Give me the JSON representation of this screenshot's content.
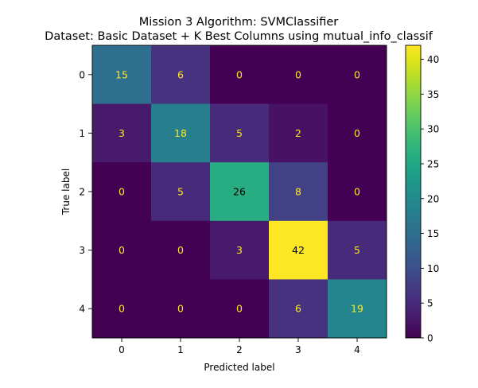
{
  "chart_data": {
    "type": "heatmap",
    "title": "Mission 3 Algorithm: SVMClassifier",
    "subtitle": "Dataset: Basic Dataset + K Best Columns using mutual_info_classif",
    "xlabel": "Predicted label",
    "ylabel": "True label",
    "x_categories": [
      "0",
      "1",
      "2",
      "3",
      "4"
    ],
    "y_categories": [
      "0",
      "1",
      "2",
      "3",
      "4"
    ],
    "values": [
      [
        15,
        6,
        0,
        0,
        0
      ],
      [
        3,
        18,
        5,
        2,
        0
      ],
      [
        0,
        5,
        26,
        8,
        0
      ],
      [
        0,
        0,
        3,
        42,
        5
      ],
      [
        0,
        0,
        0,
        6,
        19
      ]
    ],
    "colorbar": {
      "min": 0,
      "max": 42,
      "ticks": [
        "0",
        "5",
        "10",
        "15",
        "20",
        "25",
        "30",
        "35",
        "40"
      ],
      "colormap": "viridis"
    },
    "text_colors": {
      "dark_cell": "#fde725",
      "light_cell": "#000000"
    }
  }
}
